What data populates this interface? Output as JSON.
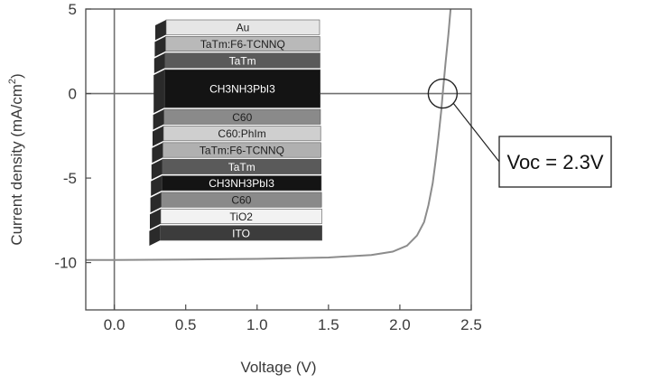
{
  "chart_data": {
    "type": "line",
    "xlabel": "Voltage (V)",
    "ylabel": "Current density (mA/cm2)",
    "ylabel_parts": {
      "main": "Current density (mA/cm",
      "sup": "2",
      "close": ")"
    },
    "xlim": [
      -0.2,
      2.5
    ],
    "ylim": [
      -12.8,
      5
    ],
    "xticks": [
      {
        "value": 0.0,
        "label": "0.0"
      },
      {
        "value": 0.5,
        "label": "0.5"
      },
      {
        "value": 1.0,
        "label": "1.0"
      },
      {
        "value": 1.5,
        "label": "1.5"
      },
      {
        "value": 2.0,
        "label": "2.0"
      },
      {
        "value": 2.5,
        "label": "2.5"
      }
    ],
    "yticks": [
      {
        "value": 5,
        "label": "5"
      },
      {
        "value": 0,
        "label": "0"
      },
      {
        "value": -5,
        "label": "-5"
      },
      {
        "value": -10,
        "label": "-10"
      }
    ],
    "reference_lines": {
      "x": 0,
      "y": 0
    },
    "series": [
      {
        "color": "#8c8c8c",
        "points": [
          [
            -0.2,
            -9.85
          ],
          [
            0.0,
            -9.85
          ],
          [
            0.5,
            -9.82
          ],
          [
            1.0,
            -9.78
          ],
          [
            1.5,
            -9.7
          ],
          [
            1.8,
            -9.55
          ],
          [
            1.95,
            -9.35
          ],
          [
            2.05,
            -9.0
          ],
          [
            2.12,
            -8.4
          ],
          [
            2.17,
            -7.6
          ],
          [
            2.2,
            -6.6
          ],
          [
            2.23,
            -5.3
          ],
          [
            2.25,
            -4.0
          ],
          [
            2.27,
            -2.6
          ],
          [
            2.29,
            -1.0
          ],
          [
            2.3,
            0.0
          ],
          [
            2.32,
            1.8
          ],
          [
            2.34,
            3.5
          ],
          [
            2.355,
            5.0
          ]
        ]
      }
    ],
    "annotation": {
      "text": "Voc = 2.3V",
      "x": 2.3,
      "y": 0
    },
    "inset_stack": {
      "description_free_layers": [
        {
          "text": "Au",
          "color": "#e6e6e6",
          "dark_text": true
        },
        {
          "text": "TaTm:F6-TCNNQ",
          "color": "#b9b9b9",
          "dark_text": true
        },
        {
          "text": "TaTm",
          "color": "#5a5a5a",
          "dark_text": false
        },
        {
          "text": "CH3NH3PbI3",
          "color": "#141414",
          "dark_text": false,
          "thick": true
        },
        {
          "text": "C60",
          "color": "#8a8a8a",
          "dark_text": true
        },
        {
          "text": "C60:PhIm",
          "color": "#cfcfcf",
          "dark_text": true
        },
        {
          "text": "TaTm:F6-TCNNQ",
          "color": "#b0b0b0",
          "dark_text": true
        },
        {
          "text": "TaTm",
          "color": "#5a5a5a",
          "dark_text": false
        },
        {
          "text": "CH3NH3PbI3",
          "color": "#141414",
          "dark_text": false
        },
        {
          "text": "C60",
          "color": "#8a8a8a",
          "dark_text": true
        },
        {
          "text": "TiO2",
          "color": "#f2f2f2",
          "dark_text": true
        },
        {
          "text": "ITO",
          "color": "#3c3c3c",
          "dark_text": false
        }
      ]
    }
  }
}
